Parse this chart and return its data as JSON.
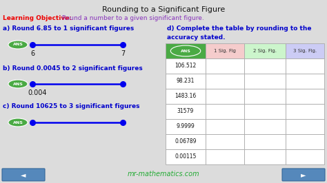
{
  "title": "Rounding to a Significant Figure",
  "lo_label": "Learning Objective:",
  "lo_text": " Round a number to a given significant figure.",
  "bg_color": "#dcdcdc",
  "title_color": "#111111",
  "lo_label_color": "#ee0000",
  "lo_text_color": "#8833bb",
  "section_color": "#0000cc",
  "ans_color": "#4aaa44",
  "ans_text_color": "#ffffff",
  "line_color": "#0000ee",
  "dot_color": "#0000ee",
  "sections": [
    {
      "label": "a) Round 6.85 to 1 significant figures",
      "left_lbl": "6",
      "right_lbl": "7"
    },
    {
      "label": "b) Round 0.0045 to 2 significant figures",
      "left_lbl": "0.004",
      "right_lbl": ""
    },
    {
      "label": "c) Round 10625 to 3 significant figures",
      "left_lbl": "",
      "right_lbl": ""
    }
  ],
  "d_line1": "d) Complete the table by rounding to the",
  "d_line2": "accuracy stated.",
  "table_header": [
    "ANS",
    "1 Sig. Fig",
    "2 Sig. Fig.",
    "3 Sig. Fig."
  ],
  "hdr_colors": [
    "#4aaa44",
    "#f5cccc",
    "#ccf5cc",
    "#ccccf5"
  ],
  "table_rows": [
    "106.512",
    "98.231",
    "1483.16",
    "31579",
    "9.9999",
    "0.06789",
    "0.00115"
  ],
  "footer_text": "mr-mathematics.com",
  "footer_color": "#22aa33",
  "nav_color": "#5588bb"
}
